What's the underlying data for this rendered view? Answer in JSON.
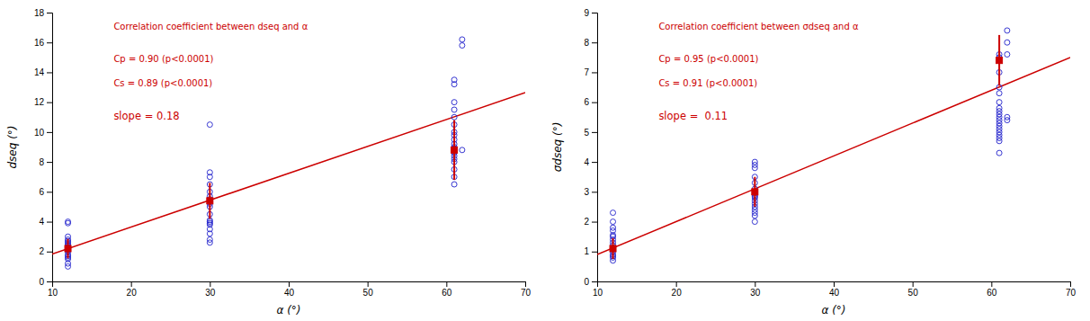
{
  "chart_data": [
    {
      "type": "scatter",
      "xlabel": "α (°)",
      "ylabel": "dseq (°)",
      "xlim": [
        10,
        70
      ],
      "ylim": [
        0,
        18
      ],
      "xticks": [
        10,
        20,
        30,
        40,
        50,
        60,
        70
      ],
      "yticks": [
        0,
        2,
        4,
        6,
        8,
        10,
        12,
        14,
        16,
        18
      ],
      "annotations": [
        {
          "text": "Correlation coefficient between dseq and α",
          "color": "#CC0000"
        },
        {
          "text": "Cp = 0.90 (p<0.0001)",
          "color": "#CC0000"
        },
        {
          "text": "Cs = 0.89 (p<0.0001)",
          "color": "#CC0000"
        },
        {
          "text": "slope = 0.18",
          "color": "#CC0000"
        }
      ],
      "series": [
        {
          "type": "scatter",
          "marker": "circle-open",
          "color": "#2222CC",
          "x": [
            12,
            12,
            12,
            12,
            12,
            12,
            12,
            12,
            12,
            12,
            12,
            12,
            12,
            12,
            12,
            12,
            12,
            12
          ],
          "values": [
            1.0,
            1.2,
            1.5,
            1.6,
            1.7,
            1.8,
            2.0,
            2.1,
            2.2,
            2.3,
            2.4,
            2.5,
            2.6,
            2.7,
            2.8,
            3.0,
            3.9,
            4.0
          ]
        },
        {
          "type": "scatter",
          "marker": "circle-open",
          "color": "#2222CC",
          "x": [
            30,
            30,
            30,
            30,
            30,
            30,
            30,
            30,
            30,
            30,
            30,
            30,
            30,
            30,
            30,
            30,
            30,
            30,
            30
          ],
          "values": [
            2.6,
            2.8,
            3.2,
            3.5,
            3.8,
            3.9,
            4.0,
            4.1,
            4.5,
            5.0,
            5.2,
            5.4,
            5.5,
            5.7,
            6.0,
            6.5,
            7.0,
            7.3,
            10.5
          ]
        },
        {
          "type": "scatter",
          "marker": "circle-open",
          "color": "#2222CC",
          "x": [
            61,
            61,
            61,
            61,
            61,
            61,
            61,
            61,
            61,
            61,
            61,
            61,
            61,
            61,
            61,
            61,
            61,
            61,
            61,
            61,
            61,
            62,
            62,
            62
          ],
          "values": [
            6.5,
            7.0,
            7.5,
            8.0,
            8.2,
            8.4,
            8.6,
            8.7,
            8.8,
            8.9,
            9.0,
            9.2,
            9.5,
            9.8,
            10.0,
            10.5,
            11.0,
            11.5,
            12.0,
            13.2,
            13.5,
            8.8,
            15.8,
            16.2
          ]
        },
        {
          "type": "scatter",
          "marker": "square",
          "color": "#CC0000",
          "x": [
            12,
            30,
            61
          ],
          "values": [
            2.2,
            5.4,
            8.8
          ],
          "errors": [
            0.65,
            1.2,
            2.0
          ]
        },
        {
          "type": "line",
          "color": "#CC0000",
          "x": [
            10,
            70
          ],
          "values": [
            1.84,
            12.64
          ]
        }
      ]
    },
    {
      "type": "scatter",
      "xlabel": "α (°)",
      "ylabel": "σdseq (°)",
      "xlim": [
        10,
        70
      ],
      "ylim": [
        0,
        9
      ],
      "xticks": [
        10,
        20,
        30,
        40,
        50,
        60,
        70
      ],
      "yticks": [
        0,
        1,
        2,
        3,
        4,
        5,
        6,
        7,
        8,
        9
      ],
      "annotations": [
        {
          "text": "Correlation coefficient between σdseq and α",
          "color": "#CC0000"
        },
        {
          "text": "Cp = 0.95 (p<0.0001)",
          "color": "#CC0000"
        },
        {
          "text": "Cs = 0.91 (p<0.0001)",
          "color": "#CC0000"
        },
        {
          "text": "slope =  0.11",
          "color": "#CC0000"
        }
      ],
      "series": [
        {
          "type": "scatter",
          "marker": "circle-open",
          "color": "#2222CC",
          "x": [
            12,
            12,
            12,
            12,
            12,
            12,
            12,
            12,
            12,
            12,
            12,
            12,
            12,
            12,
            12
          ],
          "values": [
            0.7,
            0.8,
            0.85,
            0.9,
            1.0,
            1.1,
            1.2,
            1.3,
            1.4,
            1.5,
            1.55,
            1.7,
            1.8,
            2.0,
            2.3
          ]
        },
        {
          "type": "scatter",
          "marker": "circle-open",
          "color": "#2222CC",
          "x": [
            30,
            30,
            30,
            30,
            30,
            30,
            30,
            30,
            30,
            30,
            30,
            30,
            30,
            30,
            30,
            30,
            30
          ],
          "values": [
            2.0,
            2.2,
            2.3,
            2.4,
            2.5,
            2.6,
            2.7,
            2.8,
            2.85,
            2.9,
            3.0,
            3.1,
            3.3,
            3.5,
            3.8,
            3.9,
            4.0
          ]
        },
        {
          "type": "scatter",
          "marker": "circle-open",
          "color": "#2222CC",
          "x": [
            61,
            61,
            61,
            61,
            61,
            61,
            61,
            61,
            61,
            61,
            61,
            61,
            61,
            61,
            61,
            61,
            61,
            61,
            61,
            62,
            62,
            62,
            62,
            62
          ],
          "values": [
            4.3,
            4.7,
            4.8,
            4.9,
            5.0,
            5.1,
            5.2,
            5.3,
            5.4,
            5.5,
            5.6,
            5.7,
            5.8,
            6.0,
            6.3,
            6.5,
            7.0,
            7.5,
            7.6,
            5.4,
            5.5,
            7.6,
            8.0,
            8.4
          ]
        },
        {
          "type": "scatter",
          "marker": "square",
          "color": "#CC0000",
          "x": [
            12,
            30,
            61
          ],
          "values": [
            1.1,
            3.0,
            7.4
          ],
          "errors": [
            0.35,
            0.5,
            0.85
          ]
        },
        {
          "type": "line",
          "color": "#CC0000",
          "x": [
            10,
            70
          ],
          "values": [
            0.9,
            7.5
          ]
        }
      ]
    }
  ]
}
